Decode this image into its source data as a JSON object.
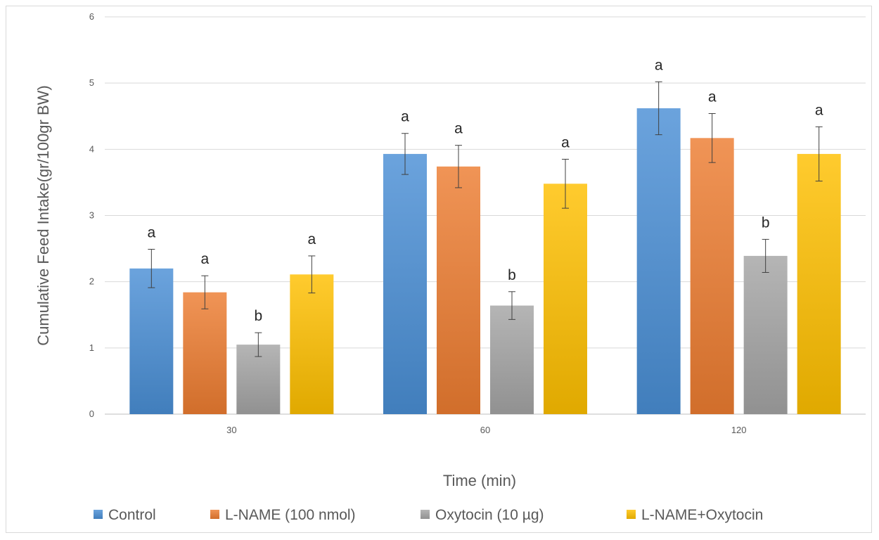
{
  "chart_data": {
    "type": "bar",
    "title": "",
    "xlabel": "Time (min)",
    "ylabel": "Cumulative Feed Intake(gr/100gr BW)",
    "ylim": [
      0,
      6
    ],
    "yticks": [
      "0",
      "1",
      "2",
      "3",
      "4",
      "5",
      "6"
    ],
    "categories": [
      "30",
      "60",
      "120"
    ],
    "grid": true,
    "legend_position": "bottom",
    "series": [
      {
        "name": "Control",
        "color": "#4a8fd6",
        "values": [
          2.2,
          3.93,
          4.62
        ],
        "errors": [
          0.29,
          0.31,
          0.4
        ],
        "labels": [
          "a",
          "a",
          "a"
        ]
      },
      {
        "name": "L-NAME (100 nmol)",
        "color": "#ed7d31",
        "values": [
          1.84,
          3.74,
          4.17
        ],
        "errors": [
          0.25,
          0.32,
          0.37
        ],
        "labels": [
          "a",
          "a",
          "a"
        ]
      },
      {
        "name": "Oxytocin (10 µg)",
        "color": "#a5a5a5",
        "values": [
          1.05,
          1.64,
          2.39
        ],
        "errors": [
          0.18,
          0.21,
          0.25
        ],
        "labels": [
          "b",
          "b",
          "b"
        ]
      },
      {
        "name": "L-NAME+Oxytocin",
        "color": "#ffc000",
        "values": [
          2.11,
          3.48,
          3.93
        ],
        "errors": [
          0.28,
          0.37,
          0.41
        ],
        "labels": [
          "a",
          "a",
          "a"
        ]
      }
    ]
  }
}
